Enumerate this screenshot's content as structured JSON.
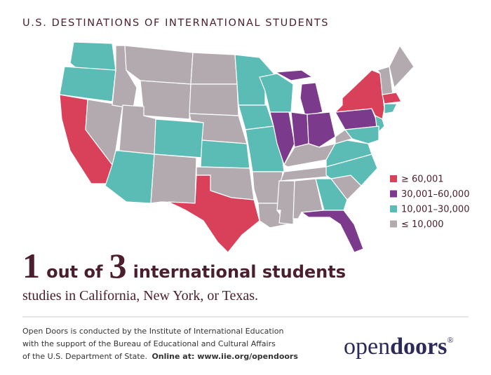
{
  "title": "U.S. DESTINATIONS OF INTERNATIONAL STUDENTS",
  "legend": [
    {
      "label": "≥ 60,001",
      "color": "#d9415a"
    },
    {
      "label": "30,001–60,000",
      "color": "#7b3a8b"
    },
    {
      "label": "10,001–30,000",
      "color": "#5bbcb5"
    },
    {
      "label": "≤ 10,000",
      "color": "#b3aab0"
    }
  ],
  "headline": {
    "parts": [
      "1",
      "out of",
      "3",
      "international students"
    ]
  },
  "subtitle": "studies in California, New York, or Texas.",
  "footer": {
    "lines": [
      "Open Doors is conducted by the Institute of International Education",
      "with the support of the Bureau of Educational and Cultural Affairs",
      "of the U.S. Department of State."
    ],
    "link": "Online at: www.iie.org/opendoors"
  },
  "logo": {
    "open": "open",
    "doors": "doors",
    "mark": "®"
  }
}
